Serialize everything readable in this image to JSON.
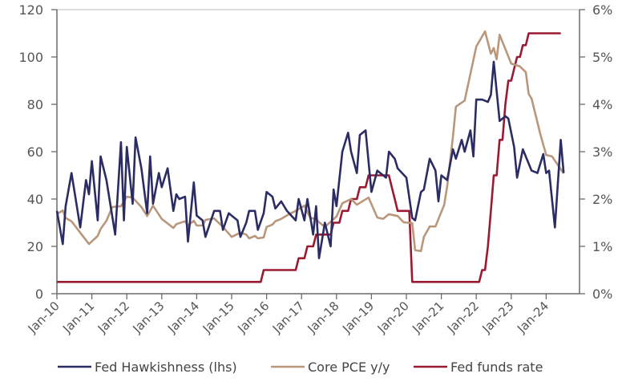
{
  "chart_data": {
    "type": "line",
    "title": "",
    "x_axis": {
      "tick_labels": [
        "Jan-10",
        "Jan-11",
        "Jan-12",
        "Jan-13",
        "Jan-14",
        "Jan-15",
        "Jan-16",
        "Jan-17",
        "Jan-18",
        "Jan-19",
        "Jan-20",
        "Jan-21",
        "Jan-22",
        "Jan-23",
        "Jan-24"
      ]
    },
    "y_left": {
      "range": [
        0,
        120
      ],
      "ticks": [
        0,
        20,
        40,
        60,
        80,
        100,
        120
      ],
      "tick_labels": [
        "0",
        "20",
        "40",
        "60",
        "80",
        "100",
        "120"
      ]
    },
    "y_right": {
      "range": [
        0,
        6
      ],
      "ticks": [
        0,
        1,
        2,
        3,
        4,
        5,
        6
      ],
      "tick_labels": [
        "0%",
        "1%",
        "2%",
        "3%",
        "4%",
        "5%",
        "6%"
      ]
    },
    "grid": false,
    "legend_position": "bottom",
    "series": [
      {
        "name": "Fed Hawkishness (lhs)",
        "axis": "left",
        "color": "#2a2c63",
        "points": [
          [
            "2010-01",
            35
          ],
          [
            "2010-03",
            21
          ],
          [
            "2010-04",
            37
          ],
          [
            "2010-06",
            51
          ],
          [
            "2010-09",
            28
          ],
          [
            "2010-11",
            48
          ],
          [
            "2010-12",
            42
          ],
          [
            "2011-01",
            56
          ],
          [
            "2011-03",
            31
          ],
          [
            "2011-04",
            58
          ],
          [
            "2011-06",
            48
          ],
          [
            "2011-09",
            25
          ],
          [
            "2011-11",
            64
          ],
          [
            "2011-12",
            31
          ],
          [
            "2012-01",
            62
          ],
          [
            "2012-03",
            38
          ],
          [
            "2012-04",
            66
          ],
          [
            "2012-06",
            53
          ],
          [
            "2012-08",
            34
          ],
          [
            "2012-09",
            58
          ],
          [
            "2012-10",
            38
          ],
          [
            "2012-12",
            51
          ],
          [
            "2013-01",
            45
          ],
          [
            "2013-03",
            53
          ],
          [
            "2013-05",
            35
          ],
          [
            "2013-06",
            42
          ],
          [
            "2013-07",
            40
          ],
          [
            "2013-09",
            41
          ],
          [
            "2013-10",
            22
          ],
          [
            "2013-12",
            47
          ],
          [
            "2014-01",
            33
          ],
          [
            "2014-03",
            31
          ],
          [
            "2014-04",
            24
          ],
          [
            "2014-07",
            35
          ],
          [
            "2014-09",
            35
          ],
          [
            "2014-10",
            27
          ],
          [
            "2014-12",
            34
          ],
          [
            "2015-03",
            31
          ],
          [
            "2015-04",
            24
          ],
          [
            "2015-06",
            30
          ],
          [
            "2015-07",
            35
          ],
          [
            "2015-09",
            35
          ],
          [
            "2015-10",
            27
          ],
          [
            "2015-12",
            34
          ],
          [
            "2016-01",
            43
          ],
          [
            "2016-03",
            41
          ],
          [
            "2016-04",
            36
          ],
          [
            "2016-06",
            39
          ],
          [
            "2016-08",
            35
          ],
          [
            "2016-11",
            31
          ],
          [
            "2016-12",
            40
          ],
          [
            "2017-02",
            31
          ],
          [
            "2017-03",
            40
          ],
          [
            "2017-05",
            25
          ],
          [
            "2017-06",
            37
          ],
          [
            "2017-07",
            15
          ],
          [
            "2017-09",
            30
          ],
          [
            "2017-11",
            20
          ],
          [
            "2017-12",
            44
          ],
          [
            "2018-01",
            37
          ],
          [
            "2018-03",
            60
          ],
          [
            "2018-05",
            68
          ],
          [
            "2018-06",
            60
          ],
          [
            "2018-08",
            51
          ],
          [
            "2018-09",
            67
          ],
          [
            "2018-11",
            69
          ],
          [
            "2019-01",
            43
          ],
          [
            "2019-03",
            52
          ],
          [
            "2019-06",
            49
          ],
          [
            "2019-07",
            60
          ],
          [
            "2019-09",
            57
          ],
          [
            "2019-10",
            53
          ],
          [
            "2020-01",
            49
          ],
          [
            "2020-03",
            32
          ],
          [
            "2020-04",
            31
          ],
          [
            "2020-06",
            43
          ],
          [
            "2020-07",
            44
          ],
          [
            "2020-09",
            57
          ],
          [
            "2020-11",
            52
          ],
          [
            "2020-12",
            39
          ],
          [
            "2021-01",
            50
          ],
          [
            "2021-03",
            48
          ],
          [
            "2021-05",
            61
          ],
          [
            "2021-06",
            57
          ],
          [
            "2021-08",
            65
          ],
          [
            "2021-09",
            60
          ],
          [
            "2021-11",
            69
          ],
          [
            "2021-12",
            58
          ],
          [
            "2022-01",
            82
          ],
          [
            "2022-03",
            82
          ],
          [
            "2022-05",
            81
          ],
          [
            "2022-06",
            84
          ],
          [
            "2022-07",
            98
          ],
          [
            "2022-09",
            73
          ],
          [
            "2022-11",
            75
          ],
          [
            "2022-12",
            74
          ],
          [
            "2023-02",
            62
          ],
          [
            "2023-03",
            49
          ],
          [
            "2023-05",
            61
          ],
          [
            "2023-08",
            52
          ],
          [
            "2023-10",
            51
          ],
          [
            "2023-12",
            59
          ],
          [
            "2024-01",
            51
          ],
          [
            "2024-02",
            52
          ],
          [
            "2024-04",
            28
          ],
          [
            "2024-06",
            65
          ],
          [
            "2024-07",
            51
          ]
        ]
      },
      {
        "name": "Core PCE y/y",
        "axis": "right",
        "color": "#b9977b",
        "points": [
          [
            "2010-01",
            1.68
          ],
          [
            "2010-03",
            1.76
          ],
          [
            "2010-04",
            1.6
          ],
          [
            "2010-06",
            1.53
          ],
          [
            "2010-09",
            1.29
          ],
          [
            "2010-12",
            1.05
          ],
          [
            "2011-03",
            1.22
          ],
          [
            "2011-04",
            1.37
          ],
          [
            "2011-06",
            1.54
          ],
          [
            "2011-08",
            1.83
          ],
          [
            "2011-11",
            1.85
          ],
          [
            "2012-01",
            2.05
          ],
          [
            "2012-03",
            2.03
          ],
          [
            "2012-06",
            1.83
          ],
          [
            "2012-08",
            1.64
          ],
          [
            "2012-10",
            1.86
          ],
          [
            "2013-01",
            1.58
          ],
          [
            "2013-05",
            1.39
          ],
          [
            "2013-06",
            1.47
          ],
          [
            "2013-09",
            1.53
          ],
          [
            "2013-10",
            1.44
          ],
          [
            "2013-12",
            1.54
          ],
          [
            "2014-01",
            1.44
          ],
          [
            "2014-03",
            1.44
          ],
          [
            "2014-04",
            1.56
          ],
          [
            "2014-07",
            1.59
          ],
          [
            "2014-10",
            1.41
          ],
          [
            "2015-01",
            1.2
          ],
          [
            "2015-04",
            1.29
          ],
          [
            "2015-06",
            1.25
          ],
          [
            "2015-07",
            1.17
          ],
          [
            "2015-09",
            1.22
          ],
          [
            "2015-10",
            1.17
          ],
          [
            "2015-12",
            1.19
          ],
          [
            "2016-01",
            1.41
          ],
          [
            "2016-03",
            1.46
          ],
          [
            "2016-04",
            1.53
          ],
          [
            "2016-06",
            1.58
          ],
          [
            "2016-09",
            1.69
          ],
          [
            "2016-11",
            1.75
          ],
          [
            "2017-02",
            1.86
          ],
          [
            "2017-04",
            1.6
          ],
          [
            "2017-06",
            1.58
          ],
          [
            "2017-07",
            1.51
          ],
          [
            "2017-09",
            1.41
          ],
          [
            "2018-01",
            1.63
          ],
          [
            "2018-03",
            1.91
          ],
          [
            "2018-06",
            2.0
          ],
          [
            "2018-08",
            1.88
          ],
          [
            "2018-12",
            2.03
          ],
          [
            "2019-03",
            1.61
          ],
          [
            "2019-05",
            1.58
          ],
          [
            "2019-07",
            1.68
          ],
          [
            "2019-10",
            1.64
          ],
          [
            "2019-12",
            1.51
          ],
          [
            "2020-03",
            1.49
          ],
          [
            "2020-04",
            0.92
          ],
          [
            "2020-06",
            0.9
          ],
          [
            "2020-07",
            1.2
          ],
          [
            "2020-09",
            1.42
          ],
          [
            "2020-11",
            1.42
          ],
          [
            "2021-02",
            1.88
          ],
          [
            "2021-03",
            2.27
          ],
          [
            "2021-05",
            3.32
          ],
          [
            "2021-06",
            3.95
          ],
          [
            "2021-09",
            4.08
          ],
          [
            "2022-01",
            5.22
          ],
          [
            "2022-04",
            5.54
          ],
          [
            "2022-06",
            5.07
          ],
          [
            "2022-07",
            5.19
          ],
          [
            "2022-08",
            4.95
          ],
          [
            "2022-09",
            5.47
          ],
          [
            "2023-01",
            4.86
          ],
          [
            "2023-04",
            4.8
          ],
          [
            "2023-06",
            4.68
          ],
          [
            "2023-07",
            4.22
          ],
          [
            "2023-08",
            4.12
          ],
          [
            "2023-11",
            3.37
          ],
          [
            "2024-01",
            2.93
          ],
          [
            "2024-03",
            2.9
          ],
          [
            "2024-04",
            2.81
          ],
          [
            "2024-07",
            2.54
          ]
        ]
      },
      {
        "name": "Fed funds rate",
        "axis": "right",
        "color": "#9a1a32",
        "steps": [
          [
            "2010-01",
            0.25
          ],
          [
            "2015-12",
            0.5
          ],
          [
            "2016-12",
            0.75
          ],
          [
            "2017-03",
            1.0
          ],
          [
            "2017-06",
            1.25
          ],
          [
            "2017-12",
            1.5
          ],
          [
            "2018-03",
            1.75
          ],
          [
            "2018-06",
            2.0
          ],
          [
            "2018-09",
            2.25
          ],
          [
            "2018-12",
            2.5
          ],
          [
            "2019-08",
            2.25
          ],
          [
            "2019-09",
            2.0
          ],
          [
            "2019-10",
            1.75
          ],
          [
            "2020-03",
            0.25
          ],
          [
            "2022-03",
            0.5
          ],
          [
            "2022-05",
            1.0
          ],
          [
            "2022-06",
            1.75
          ],
          [
            "2022-07",
            2.5
          ],
          [
            "2022-09",
            3.25
          ],
          [
            "2022-11",
            4.0
          ],
          [
            "2022-12",
            4.5
          ],
          [
            "2023-02",
            4.75
          ],
          [
            "2023-03",
            5.0
          ],
          [
            "2023-05",
            5.25
          ],
          [
            "2023-07",
            5.5
          ]
        ],
        "end": "2024-07"
      }
    ]
  }
}
